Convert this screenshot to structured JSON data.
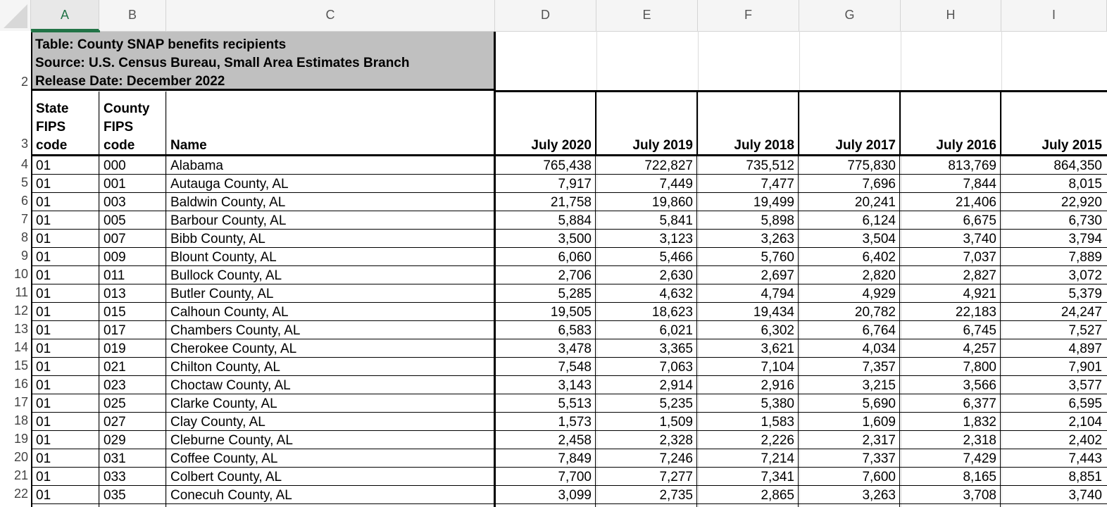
{
  "columns": [
    "A",
    "B",
    "C",
    "D",
    "E",
    "F",
    "G",
    "H",
    "I"
  ],
  "active_column": "A",
  "title_block": {
    "row_number": "2",
    "line1": "Table:  County SNAP benefits recipients",
    "line2": "Source:  U.S. Census Bureau, Small Area Estimates Branch",
    "line3": "Release Date:  December 2022"
  },
  "header_row": {
    "row_number": "3",
    "state_fips": [
      "State",
      "FIPS",
      "code"
    ],
    "county_fips": [
      "County",
      "FIPS",
      "code"
    ],
    "name": "Name",
    "years": [
      "July 2020",
      "July 2019",
      "July 2018",
      "July 2017",
      "July 2016",
      "July 2015"
    ]
  },
  "rows": [
    {
      "n": "4",
      "state": "01",
      "county": "000",
      "name": "Alabama",
      "v": [
        "765,438",
        "722,827",
        "735,512",
        "775,830",
        "813,769",
        "864,350"
      ]
    },
    {
      "n": "5",
      "state": "01",
      "county": "001",
      "name": "Autauga County, AL",
      "v": [
        "7,917",
        "7,449",
        "7,477",
        "7,696",
        "7,844",
        "8,015"
      ]
    },
    {
      "n": "6",
      "state": "01",
      "county": "003",
      "name": "Baldwin County, AL",
      "v": [
        "21,758",
        "19,860",
        "19,499",
        "20,241",
        "21,406",
        "22,920"
      ]
    },
    {
      "n": "7",
      "state": "01",
      "county": "005",
      "name": "Barbour County, AL",
      "v": [
        "5,884",
        "5,841",
        "5,898",
        "6,124",
        "6,675",
        "6,730"
      ]
    },
    {
      "n": "8",
      "state": "01",
      "county": "007",
      "name": "Bibb County, AL",
      "v": [
        "3,500",
        "3,123",
        "3,263",
        "3,504",
        "3,740",
        "3,794"
      ]
    },
    {
      "n": "9",
      "state": "01",
      "county": "009",
      "name": "Blount County, AL",
      "v": [
        "6,060",
        "5,466",
        "5,760",
        "6,402",
        "7,037",
        "7,889"
      ]
    },
    {
      "n": "10",
      "state": "01",
      "county": "011",
      "name": "Bullock County, AL",
      "v": [
        "2,706",
        "2,630",
        "2,697",
        "2,820",
        "2,827",
        "3,072"
      ]
    },
    {
      "n": "11",
      "state": "01",
      "county": "013",
      "name": "Butler County, AL",
      "v": [
        "5,285",
        "4,632",
        "4,794",
        "4,929",
        "4,921",
        "5,379"
      ]
    },
    {
      "n": "12",
      "state": "01",
      "county": "015",
      "name": "Calhoun County, AL",
      "v": [
        "19,505",
        "18,623",
        "19,434",
        "20,782",
        "22,183",
        "24,247"
      ]
    },
    {
      "n": "13",
      "state": "01",
      "county": "017",
      "name": "Chambers County, AL",
      "v": [
        "6,583",
        "6,021",
        "6,302",
        "6,764",
        "6,745",
        "7,527"
      ]
    },
    {
      "n": "14",
      "state": "01",
      "county": "019",
      "name": "Cherokee County, AL",
      "v": [
        "3,478",
        "3,365",
        "3,621",
        "4,034",
        "4,257",
        "4,897"
      ]
    },
    {
      "n": "15",
      "state": "01",
      "county": "021",
      "name": "Chilton County, AL",
      "v": [
        "7,548",
        "7,063",
        "7,104",
        "7,357",
        "7,800",
        "7,901"
      ]
    },
    {
      "n": "16",
      "state": "01",
      "county": "023",
      "name": "Choctaw County, AL",
      "v": [
        "3,143",
        "2,914",
        "2,916",
        "3,215",
        "3,566",
        "3,577"
      ]
    },
    {
      "n": "17",
      "state": "01",
      "county": "025",
      "name": "Clarke County, AL",
      "v": [
        "5,513",
        "5,235",
        "5,380",
        "5,690",
        "6,377",
        "6,595"
      ]
    },
    {
      "n": "18",
      "state": "01",
      "county": "027",
      "name": "Clay County, AL",
      "v": [
        "1,573",
        "1,509",
        "1,583",
        "1,609",
        "1,832",
        "2,104"
      ]
    },
    {
      "n": "19",
      "state": "01",
      "county": "029",
      "name": "Cleburne County, AL",
      "v": [
        "2,458",
        "2,328",
        "2,226",
        "2,317",
        "2,318",
        "2,402"
      ]
    },
    {
      "n": "20",
      "state": "01",
      "county": "031",
      "name": "Coffee County, AL",
      "v": [
        "7,849",
        "7,246",
        "7,214",
        "7,337",
        "7,429",
        "7,443"
      ]
    },
    {
      "n": "21",
      "state": "01",
      "county": "033",
      "name": "Colbert County, AL",
      "v": [
        "7,700",
        "7,277",
        "7,341",
        "7,600",
        "8,165",
        "8,851"
      ]
    },
    {
      "n": "22",
      "state": "01",
      "county": "035",
      "name": "Conecuh County, AL",
      "v": [
        "3,099",
        "2,735",
        "2,865",
        "3,263",
        "3,708",
        "3,740"
      ]
    }
  ]
}
